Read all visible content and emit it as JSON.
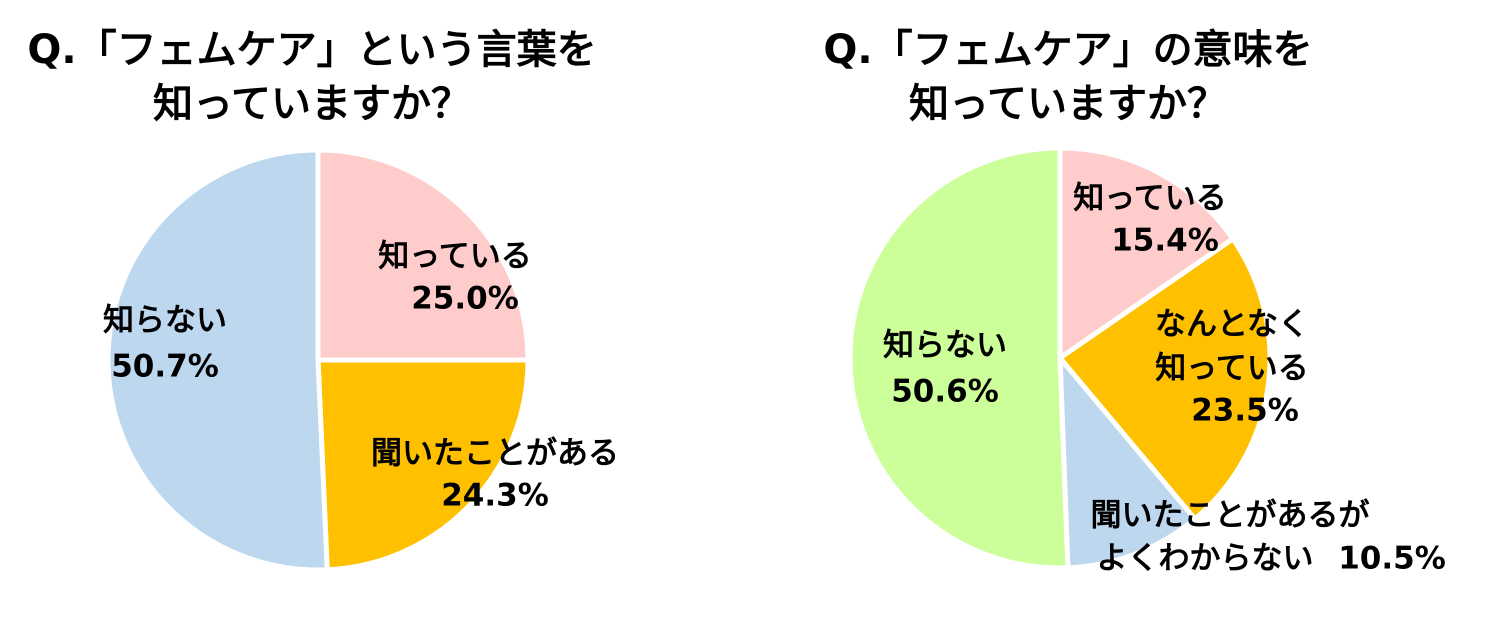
{
  "chart_data": [
    {
      "type": "pie",
      "title": [
        "Q.「フェムケア」という言葉を",
        "知っていますか？"
      ],
      "categories": [
        [
          "知っている"
        ],
        [
          "聞いたことがある"
        ],
        [
          "知らない"
        ]
      ],
      "values": [
        25.0,
        24.3,
        50.7
      ],
      "value_labels": [
        "25.0%",
        "24.3%",
        "50.7%"
      ],
      "colors": [
        "#ffcccc",
        "#ffc000",
        "#bdd7ee"
      ]
    },
    {
      "type": "pie",
      "title": [
        "Q.「フェムケア」の意味を",
        "知っていますか？"
      ],
      "categories": [
        [
          "知っている"
        ],
        [
          "なんとなく",
          "知っている"
        ],
        [
          "聞いたことがあるが",
          "よくわからない"
        ],
        [
          "知らない"
        ]
      ],
      "values": [
        15.4,
        23.5,
        10.5,
        50.6
      ],
      "value_labels": [
        "15.4%",
        "23.5%",
        "10.5%",
        "50.6%"
      ],
      "colors": [
        "#ffcccc",
        "#ffc000",
        "#bdd7ee",
        "#ccff99"
      ]
    }
  ]
}
